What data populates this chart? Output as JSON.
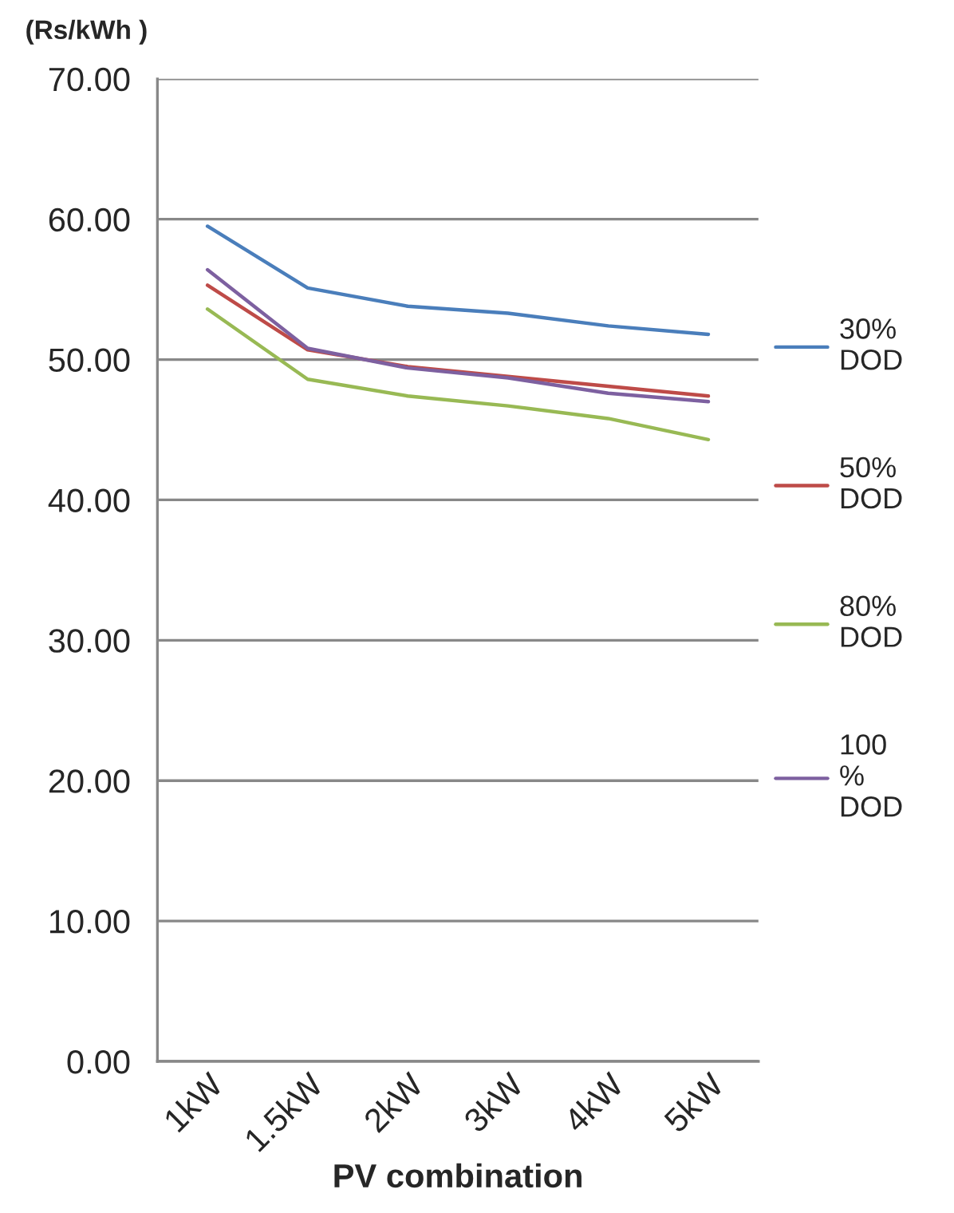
{
  "chart_data": {
    "type": "line",
    "ylabel": "(Rs/kWh )",
    "xlabel": "PV combination",
    "categories": [
      "1kW",
      "1.5kW",
      "2kW",
      "3kW",
      "4kW",
      "5kW"
    ],
    "series": [
      {
        "name": "30% DOD",
        "color": "#4a7ebb",
        "values": [
          59.5,
          55.1,
          53.8,
          53.3,
          52.4,
          51.8
        ]
      },
      {
        "name": "50% DOD",
        "color": "#be4b48",
        "values": [
          55.3,
          50.7,
          49.5,
          48.8,
          48.1,
          47.4
        ]
      },
      {
        "name": "80% DOD",
        "color": "#98b954",
        "values": [
          53.6,
          48.6,
          47.4,
          46.7,
          45.8,
          44.3
        ]
      },
      {
        "name": "100 % DOD",
        "color": "#7d60a0",
        "values": [
          56.4,
          50.8,
          49.4,
          48.7,
          47.6,
          47.0
        ]
      }
    ],
    "ylim": [
      0,
      70
    ],
    "yticks": [
      {
        "value": 0,
        "label": "0.00"
      },
      {
        "value": 10,
        "label": "10.00"
      },
      {
        "value": 20,
        "label": "20.00"
      },
      {
        "value": 30,
        "label": "30.00"
      },
      {
        "value": 40,
        "label": "40.00"
      },
      {
        "value": 50,
        "label": "50.00"
      },
      {
        "value": 60,
        "label": "60.00"
      },
      {
        "value": 70,
        "label": "70.00"
      }
    ],
    "grid": "y",
    "legend": "right",
    "marker": "none",
    "line_style": "solid"
  }
}
